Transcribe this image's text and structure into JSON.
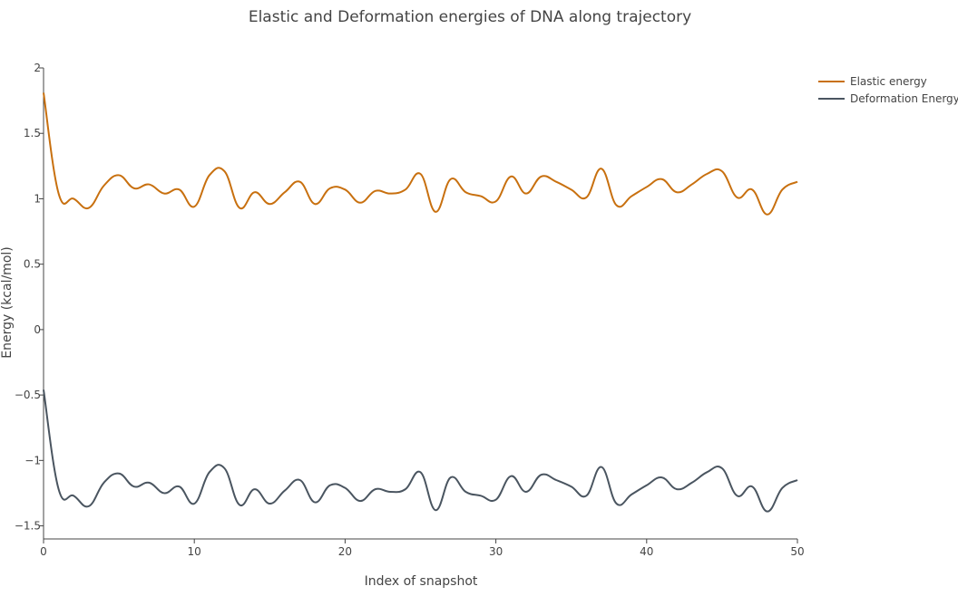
{
  "chart_data": {
    "type": "line",
    "title": "Elastic and Deformation energies of DNA along trajectory",
    "xlabel": "Index of snapshot",
    "ylabel": "Energy (kcal/mol)",
    "xlim": [
      0,
      50
    ],
    "ylim": [
      -1.6,
      2.0
    ],
    "x_ticks": [
      0,
      10,
      20,
      30,
      40,
      50
    ],
    "x_tick_labels": [
      "0",
      "10",
      "20",
      "30",
      "40",
      "50"
    ],
    "y_ticks": [
      -1.5,
      -1,
      -0.5,
      0,
      0.5,
      1,
      1.5,
      2
    ],
    "y_tick_labels": [
      "−1.5",
      "−1",
      "−0.5",
      "0",
      "0.5",
      "1",
      "1.5",
      "2"
    ],
    "grid": false,
    "legend_position": "top-right",
    "x": [
      0,
      1,
      2,
      3,
      4,
      5,
      6,
      7,
      8,
      9,
      10,
      11,
      12,
      13,
      14,
      15,
      16,
      17,
      18,
      19,
      20,
      21,
      22,
      23,
      24,
      25,
      26,
      27,
      28,
      29,
      30,
      31,
      32,
      33,
      34,
      35,
      36,
      37,
      38,
      39,
      40,
      41,
      42,
      43,
      44,
      45,
      46,
      47,
      48,
      49,
      50
    ],
    "series": [
      {
        "name": "Elastic energy",
        "color": "#c8700f",
        "values": [
          1.81,
          1.04,
          1.0,
          0.93,
          1.1,
          1.18,
          1.08,
          1.11,
          1.04,
          1.07,
          0.94,
          1.18,
          1.21,
          0.93,
          1.05,
          0.96,
          1.05,
          1.13,
          0.96,
          1.08,
          1.07,
          0.97,
          1.06,
          1.04,
          1.07,
          1.19,
          0.9,
          1.15,
          1.05,
          1.02,
          0.98,
          1.17,
          1.04,
          1.17,
          1.13,
          1.07,
          1.01,
          1.23,
          0.95,
          1.02,
          1.09,
          1.15,
          1.05,
          1.11,
          1.19,
          1.21,
          1.01,
          1.07,
          0.88,
          1.07,
          1.13
        ]
      },
      {
        "name": "Deformation Energy",
        "color": "#4a5560",
        "values": [
          -0.46,
          -1.22,
          -1.27,
          -1.35,
          -1.17,
          -1.1,
          -1.2,
          -1.17,
          -1.25,
          -1.2,
          -1.33,
          -1.09,
          -1.06,
          -1.34,
          -1.22,
          -1.33,
          -1.23,
          -1.15,
          -1.32,
          -1.19,
          -1.21,
          -1.31,
          -1.22,
          -1.24,
          -1.22,
          -1.09,
          -1.38,
          -1.13,
          -1.24,
          -1.27,
          -1.3,
          -1.12,
          -1.24,
          -1.11,
          -1.15,
          -1.2,
          -1.27,
          -1.05,
          -1.33,
          -1.26,
          -1.19,
          -1.13,
          -1.22,
          -1.17,
          -1.09,
          -1.06,
          -1.27,
          -1.2,
          -1.39,
          -1.21,
          -1.15
        ]
      }
    ]
  }
}
